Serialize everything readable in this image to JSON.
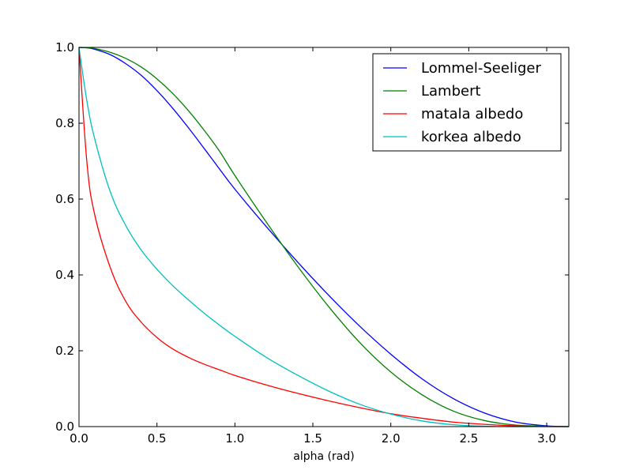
{
  "chart_data": {
    "type": "line",
    "title": "",
    "xlabel": "alpha (rad)",
    "ylabel": "",
    "xlim": [
      0,
      3.14159
    ],
    "ylim": [
      0,
      1.0
    ],
    "grid": false,
    "legend_position": "top-right",
    "x_ticks": [
      {
        "value": 0.0,
        "label": "0.0"
      },
      {
        "value": 0.5,
        "label": "0.5"
      },
      {
        "value": 1.0,
        "label": "1.0"
      },
      {
        "value": 1.5,
        "label": "1.5"
      },
      {
        "value": 2.0,
        "label": "2.0"
      },
      {
        "value": 2.5,
        "label": "2.5"
      },
      {
        "value": 3.0,
        "label": "3.0"
      }
    ],
    "y_ticks": [
      {
        "value": 0.0,
        "label": "0.0"
      },
      {
        "value": 0.2,
        "label": "0.2"
      },
      {
        "value": 0.4,
        "label": "0.4"
      },
      {
        "value": 0.6,
        "label": "0.6"
      },
      {
        "value": 0.8,
        "label": "0.8"
      },
      {
        "value": 1.0,
        "label": "1.0"
      }
    ],
    "x": [
      0.0,
      0.05,
      0.1,
      0.2,
      0.3,
      0.4,
      0.5,
      0.6,
      0.7,
      0.8,
      0.9,
      1.0,
      1.2,
      1.4,
      1.6,
      1.8,
      2.0,
      2.2,
      2.4,
      2.6,
      2.8,
      3.0,
      3.14
    ],
    "series": [
      {
        "name": "Lommel-Seeliger",
        "color": "#0000ff",
        "values": [
          1.0,
          0.999,
          0.995,
          0.981,
          0.957,
          0.926,
          0.886,
          0.84,
          0.789,
          0.735,
          0.68,
          0.626,
          0.528,
          0.435,
          0.347,
          0.265,
          0.191,
          0.126,
          0.074,
          0.036,
          0.012,
          0.002,
          0.0
        ]
      },
      {
        "name": "Lambert",
        "color": "#008000",
        "values": [
          1.0,
          0.999,
          0.997,
          0.987,
          0.971,
          0.948,
          0.917,
          0.879,
          0.834,
          0.783,
          0.727,
          0.662,
          0.54,
          0.424,
          0.317,
          0.222,
          0.144,
          0.084,
          0.041,
          0.016,
          0.004,
          0.001,
          0.0
        ]
      },
      {
        "name": "matala albedo",
        "color": "#ff0000",
        "values": [
          1.0,
          0.7,
          0.56,
          0.42,
          0.33,
          0.275,
          0.235,
          0.205,
          0.183,
          0.165,
          0.15,
          0.135,
          0.11,
          0.088,
          0.068,
          0.05,
          0.034,
          0.022,
          0.012,
          0.006,
          0.002,
          0.0,
          0.0
        ]
      },
      {
        "name": "korkea albedo",
        "color": "#00bfbf",
        "values": [
          1.0,
          0.86,
          0.76,
          0.62,
          0.53,
          0.465,
          0.415,
          0.372,
          0.335,
          0.3,
          0.268,
          0.238,
          0.183,
          0.136,
          0.094,
          0.059,
          0.033,
          0.015,
          0.005,
          0.001,
          0.0,
          0.0,
          0.0
        ]
      }
    ]
  }
}
